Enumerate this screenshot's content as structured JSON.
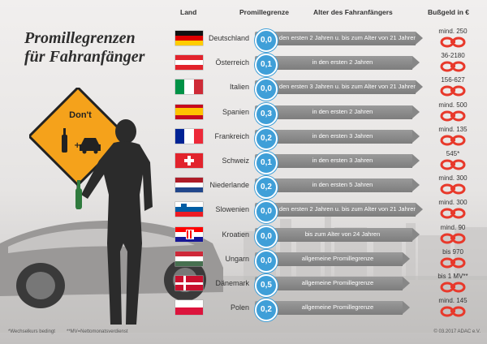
{
  "title": {
    "line1": "Promillegrenzen",
    "line2": "für Fahranfänger"
  },
  "headers": {
    "country": "Land",
    "limit": "Promillegrenze",
    "age": "Alter des Fahranfängers",
    "fine": "Bußgeld in €"
  },
  "sign": {
    "label": "Don't"
  },
  "rows": [
    {
      "country": "Deutschland",
      "limit": "0,0",
      "rule": "in den ersten 2 Jahren u. bis zum Alter von 21 Jahren",
      "fine": "mind. 250",
      "flag": "de",
      "bar_length": 1.0
    },
    {
      "country": "Österreich",
      "limit": "0,1",
      "rule": "in den ersten 2 Jahren",
      "fine": "36-2180",
      "flag": "at",
      "bar_length": 0.98
    },
    {
      "country": "Italien",
      "limit": "0,0",
      "rule": "in den ersten 3 Jahren u. bis zum Alter von 21 Jahren",
      "fine": "156-627",
      "flag": "it",
      "bar_length": 1.0
    },
    {
      "country": "Spanien",
      "limit": "0,3",
      "rule": "in den ersten 2 Jahren",
      "fine": "mind. 500",
      "flag": "es",
      "bar_length": 0.98
    },
    {
      "country": "Frankreich",
      "limit": "0,2",
      "rule": "in den ersten 3 Jahren",
      "fine": "mind. 135",
      "flag": "fr",
      "bar_length": 0.98
    },
    {
      "country": "Schweiz",
      "limit": "0,1",
      "rule": "in den ersten 3 Jahren",
      "fine": "545*",
      "flag": "ch",
      "bar_length": 0.98
    },
    {
      "country": "Niederlande",
      "limit": "0,2",
      "rule": "in den ersten 5 Jahren",
      "fine": "mind. 300",
      "flag": "nl",
      "bar_length": 0.98
    },
    {
      "country": "Slowenien",
      "limit": "0,0",
      "rule": "in den ersten 2 Jahren u. bis zum Alter von 21 Jahren",
      "fine": "mind. 300",
      "flag": "si",
      "bar_length": 1.0
    },
    {
      "country": "Kroatien",
      "limit": "0,0",
      "rule": "bis zum Alter von 24 Jahren",
      "fine": "mind. 90",
      "flag": "hr",
      "bar_length": 0.98
    },
    {
      "country": "Ungarn",
      "limit": "0,0",
      "rule": "allgemeine Promillegrenze",
      "fine": "bis 970",
      "flag": "hu",
      "bar_length": 0.92
    },
    {
      "country": "Dänemark",
      "limit": "0,5",
      "rule": "allgemeine Promillegrenze",
      "fine": "bis 1 MV**",
      "flag": "dk",
      "bar_length": 0.92
    },
    {
      "country": "Polen",
      "limit": "0,2",
      "rule": "allgemeine Promillegrenze",
      "fine": "mind. 145",
      "flag": "pl",
      "bar_length": 0.92
    }
  ],
  "footnotes": {
    "note1": "*Wechselkurs bedingt",
    "note2": "**MV=Nettomonatsverdienst",
    "copyright": "© 03.2017 ADAC e.V."
  },
  "colors": {
    "accent": "#3f9fd8",
    "cuffs": "#e8392b",
    "sign": "#f5a21b"
  }
}
